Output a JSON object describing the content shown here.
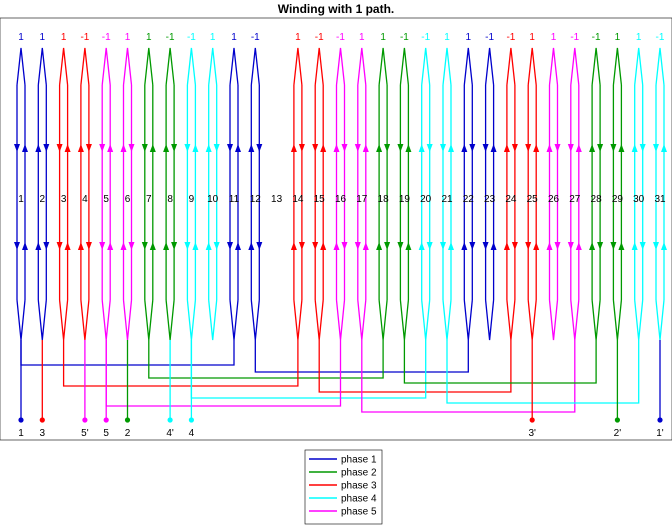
{
  "title": "Winding with 1 path.",
  "colors": {
    "phase1": "#0000cc",
    "phase2": "#009900",
    "phase3": "#ff0000",
    "phase4": "#00ffff",
    "phase5": "#ff00ff"
  },
  "slots": [
    "1",
    "2",
    "3",
    "4",
    "5",
    "6",
    "7",
    "8",
    "9",
    "10",
    "11",
    "12",
    "13",
    "14",
    "15",
    "16",
    "17",
    "18",
    "19",
    "20",
    "21",
    "22",
    "23",
    "24",
    "25",
    "26",
    "27",
    "28",
    "29",
    "30",
    "31"
  ],
  "top_directions": [
    {
      "slot": 1,
      "label": "1",
      "phase": 1
    },
    {
      "slot": 2,
      "label": "1",
      "phase": 1
    },
    {
      "slot": 3,
      "label": "1",
      "phase": 3
    },
    {
      "slot": 4,
      "label": "-1",
      "phase": 3
    },
    {
      "slot": 5,
      "label": "-1",
      "phase": 5
    },
    {
      "slot": 6,
      "label": "1",
      "phase": 5
    },
    {
      "slot": 7,
      "label": "1",
      "phase": 2
    },
    {
      "slot": 8,
      "label": "-1",
      "phase": 2
    },
    {
      "slot": 9,
      "label": "-1",
      "phase": 4
    },
    {
      "slot": 10,
      "label": "1",
      "phase": 4
    },
    {
      "slot": 11,
      "label": "1",
      "phase": 1
    },
    {
      "slot": 12,
      "label": "-1",
      "phase": 1
    },
    {
      "slot": 14,
      "label": "1",
      "phase": 3
    },
    {
      "slot": 15,
      "label": "-1",
      "phase": 3
    },
    {
      "slot": 16,
      "label": "-1",
      "phase": 5
    },
    {
      "slot": 17,
      "label": "1",
      "phase": 5
    },
    {
      "slot": 18,
      "label": "1",
      "phase": 2
    },
    {
      "slot": 19,
      "label": "-1",
      "phase": 2
    },
    {
      "slot": 20,
      "label": "-1",
      "phase": 4
    },
    {
      "slot": 21,
      "label": "1",
      "phase": 4
    },
    {
      "slot": 22,
      "label": "1",
      "phase": 1
    },
    {
      "slot": 23,
      "label": "-1",
      "phase": 1
    },
    {
      "slot": 24,
      "label": "-1",
      "phase": 3
    },
    {
      "slot": 25,
      "label": "1",
      "phase": 3
    },
    {
      "slot": 26,
      "label": "1",
      "phase": 5
    },
    {
      "slot": 27,
      "label": "-1",
      "phase": 5
    },
    {
      "slot": 28,
      "label": "-1",
      "phase": 2
    },
    {
      "slot": 29,
      "label": "1",
      "phase": 2
    },
    {
      "slot": 30,
      "label": "1",
      "phase": 4
    },
    {
      "slot": 31,
      "label": "-1",
      "phase": 4
    }
  ],
  "terminals": [
    {
      "label": "1",
      "slot": 1,
      "phase": 1
    },
    {
      "label": "3",
      "slot": 2,
      "phase": 3
    },
    {
      "label": "5'",
      "slot": 4,
      "phase": 5
    },
    {
      "label": "5",
      "slot": 5,
      "phase": 5
    },
    {
      "label": "2",
      "slot": 6,
      "phase": 2
    },
    {
      "label": "4'",
      "slot": 8,
      "phase": 4
    },
    {
      "label": "4",
      "slot": 9,
      "phase": 4
    },
    {
      "label": "3'",
      "slot": 25,
      "phase": 3
    },
    {
      "label": "2'",
      "slot": 29,
      "phase": 2
    },
    {
      "label": "1'",
      "slot": 31,
      "phase": 1
    }
  ],
  "legend": [
    {
      "label": "phase 1",
      "color": "#0000cc"
    },
    {
      "label": "phase 2",
      "color": "#009900"
    },
    {
      "label": "phase 3",
      "color": "#ff0000"
    },
    {
      "label": "phase 4",
      "color": "#00ffff"
    },
    {
      "label": "phase 5",
      "color": "#ff00ff"
    }
  ]
}
